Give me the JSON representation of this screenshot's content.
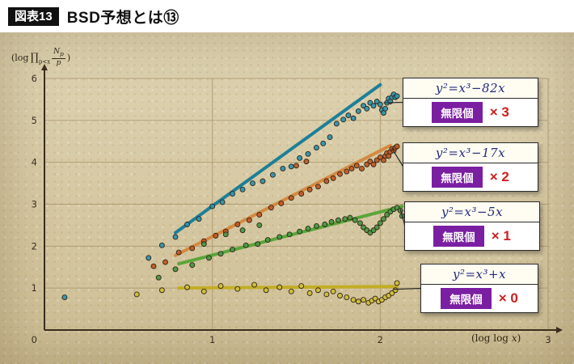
{
  "header": {
    "tag": "図表13",
    "title": "BSD予想とは⑬"
  },
  "axes": {
    "y_open": "(log",
    "y_prod": "∏",
    "y_prod_sub": "p<x",
    "y_num": "N",
    "y_num_sub": "p",
    "y_den": "p",
    "y_close": ")",
    "x_open": "(log log ",
    "x_var": "x",
    "x_close": ")"
  },
  "colors": {
    "background_parchment": "#d8cba3",
    "axis": "#3b2d1c",
    "grid": "#a89468",
    "equation_text": "#232a7c",
    "infinite_badge": "#7b1fa2",
    "multiplier_red": "#cf1e1e"
  },
  "chart_data": {
    "type": "scatter",
    "title": "",
    "xlabel": "(log log x)",
    "ylabel": "(log ∏ p<x Np/p)",
    "xlim": [
      0,
      3
    ],
    "ylim": [
      0,
      6
    ],
    "x_ticks": [
      "0",
      "1",
      "2",
      "3"
    ],
    "y_ticks": [
      "0",
      "1",
      "2",
      "3",
      "4",
      "5",
      "6"
    ],
    "grid": true,
    "legend_position": "right-callouts",
    "series": [
      {
        "equation": "y²=x³−82x",
        "count_label": "無限個",
        "multiplier": "× 3",
        "rank": 3,
        "line_color": "#1d7f97",
        "point_color": "#2e93ab",
        "trend": {
          "x1": 0.78,
          "y1": 2.32,
          "x2": 2.0,
          "y2": 5.85
        },
        "callout_target": [
          2.02,
          5.42
        ],
        "points": [
          [
            0.12,
            0.78
          ],
          [
            0.62,
            1.72
          ],
          [
            0.7,
            2.02
          ],
          [
            0.78,
            2.22
          ],
          [
            0.85,
            2.52
          ],
          [
            0.92,
            2.65
          ],
          [
            1.0,
            2.95
          ],
          [
            1.06,
            3.05
          ],
          [
            1.12,
            3.25
          ],
          [
            1.18,
            3.35
          ],
          [
            1.24,
            3.5
          ],
          [
            1.3,
            3.55
          ],
          [
            1.36,
            3.7
          ],
          [
            1.42,
            3.85
          ],
          [
            1.47,
            3.9
          ],
          [
            1.52,
            4.1
          ],
          [
            1.57,
            4.2
          ],
          [
            1.62,
            4.35
          ],
          [
            1.66,
            4.45
          ],
          [
            1.7,
            4.6
          ],
          [
            1.74,
            4.92
          ],
          [
            1.78,
            5.02
          ],
          [
            1.81,
            5.12
          ],
          [
            1.84,
            5.05
          ],
          [
            1.87,
            5.22
          ],
          [
            1.9,
            5.35
          ],
          [
            1.92,
            5.28
          ],
          [
            1.94,
            5.42
          ],
          [
            1.96,
            5.35
          ],
          [
            1.98,
            5.45
          ],
          [
            2.0,
            5.38
          ],
          [
            2.01,
            5.25
          ],
          [
            2.02,
            5.18
          ],
          [
            2.03,
            5.28
          ],
          [
            2.04,
            5.42
          ],
          [
            2.05,
            5.52
          ],
          [
            2.06,
            5.45
          ],
          [
            2.07,
            5.55
          ],
          [
            2.08,
            5.62
          ],
          [
            2.09,
            5.55
          ],
          [
            2.1,
            5.58
          ]
        ]
      },
      {
        "equation": "y²=x³−17x",
        "count_label": "無限個",
        "multiplier": "× 2",
        "rank": 2,
        "line_color": "#d48a41",
        "point_color": "#bf5a26",
        "trend": {
          "x1": 0.78,
          "y1": 1.78,
          "x2": 2.06,
          "y2": 4.4
        },
        "callout_target": [
          2.07,
          4.33
        ],
        "points": [
          [
            0.65,
            1.52
          ],
          [
            0.72,
            1.62
          ],
          [
            0.8,
            1.85
          ],
          [
            0.88,
            1.95
          ],
          [
            0.95,
            2.12
          ],
          [
            1.02,
            2.25
          ],
          [
            1.08,
            2.35
          ],
          [
            1.15,
            2.52
          ],
          [
            1.22,
            2.62
          ],
          [
            1.28,
            2.75
          ],
          [
            1.35,
            2.92
          ],
          [
            1.41,
            3.02
          ],
          [
            1.47,
            3.15
          ],
          [
            1.5,
            3.92
          ],
          [
            1.53,
            3.25
          ],
          [
            1.56,
            4.02
          ],
          [
            1.58,
            3.35
          ],
          [
            1.63,
            3.42
          ],
          [
            1.68,
            3.55
          ],
          [
            1.72,
            3.62
          ],
          [
            1.76,
            3.72
          ],
          [
            1.8,
            3.78
          ],
          [
            1.83,
            3.85
          ],
          [
            1.86,
            3.92
          ],
          [
            1.89,
            3.85
          ],
          [
            1.92,
            3.95
          ],
          [
            1.94,
            4.02
          ],
          [
            1.96,
            3.95
          ],
          [
            1.98,
            4.05
          ],
          [
            2.0,
            4.12
          ],
          [
            2.02,
            4.05
          ],
          [
            2.03,
            4.15
          ],
          [
            2.04,
            4.22
          ],
          [
            2.05,
            4.15
          ],
          [
            2.06,
            4.25
          ],
          [
            2.07,
            4.32
          ],
          [
            2.08,
            4.28
          ],
          [
            2.09,
            4.35
          ],
          [
            2.1,
            4.38
          ]
        ]
      },
      {
        "equation": "y²=x³−5x",
        "count_label": "無限個",
        "multiplier": "× 1",
        "rank": 1,
        "line_color": "#5ba53a",
        "point_color": "#4b9740",
        "trend": {
          "x1": 0.8,
          "y1": 1.58,
          "x2": 2.13,
          "y2": 2.95
        },
        "callout_target": [
          2.12,
          2.88
        ],
        "points": [
          [
            0.68,
            1.25
          ],
          [
            0.78,
            1.45
          ],
          [
            0.88,
            1.55
          ],
          [
            0.95,
            2.05
          ],
          [
            0.98,
            1.72
          ],
          [
            1.05,
            1.82
          ],
          [
            1.08,
            2.28
          ],
          [
            1.12,
            1.92
          ],
          [
            1.18,
            2.38
          ],
          [
            1.2,
            2.02
          ],
          [
            1.27,
            2.05
          ],
          [
            1.28,
            2.5
          ],
          [
            1.33,
            2.15
          ],
          [
            1.4,
            2.22
          ],
          [
            1.46,
            2.28
          ],
          [
            1.52,
            2.35
          ],
          [
            1.57,
            2.42
          ],
          [
            1.62,
            2.48
          ],
          [
            1.67,
            2.52
          ],
          [
            1.71,
            2.58
          ],
          [
            1.75,
            2.62
          ],
          [
            1.79,
            2.65
          ],
          [
            1.82,
            2.68
          ],
          [
            1.85,
            2.62
          ],
          [
            1.88,
            2.55
          ],
          [
            1.9,
            2.45
          ],
          [
            1.92,
            2.38
          ],
          [
            1.94,
            2.32
          ],
          [
            1.96,
            2.38
          ],
          [
            1.98,
            2.45
          ],
          [
            2.0,
            2.55
          ],
          [
            2.02,
            2.65
          ],
          [
            2.04,
            2.75
          ],
          [
            2.06,
            2.82
          ],
          [
            2.08,
            2.88
          ],
          [
            2.1,
            2.92
          ],
          [
            2.12,
            2.85
          ],
          [
            2.13,
            2.72
          ]
        ]
      },
      {
        "equation": "y²=x³+x",
        "count_label": "無限個",
        "multiplier": "× 0",
        "rank": 0,
        "line_color": "#c3ad25",
        "point_color": "#cfbe3a",
        "trend": {
          "x1": 0.8,
          "y1": 1.0,
          "x2": 2.1,
          "y2": 1.04
        },
        "callout_target": [
          2.08,
          0.97
        ],
        "points": [
          [
            0.55,
            0.85
          ],
          [
            0.7,
            0.95
          ],
          [
            0.85,
            1.02
          ],
          [
            0.95,
            0.92
          ],
          [
            1.05,
            1.05
          ],
          [
            1.15,
            0.98
          ],
          [
            1.25,
            1.08
          ],
          [
            1.32,
            0.95
          ],
          [
            1.4,
            1.02
          ],
          [
            1.47,
            0.92
          ],
          [
            1.53,
            1.05
          ],
          [
            1.58,
            0.88
          ],
          [
            1.63,
            0.95
          ],
          [
            1.68,
            0.85
          ],
          [
            1.72,
            0.92
          ],
          [
            1.76,
            0.82
          ],
          [
            1.8,
            0.78
          ],
          [
            1.84,
            0.72
          ],
          [
            1.87,
            0.68
          ],
          [
            1.9,
            0.72
          ],
          [
            1.93,
            0.65
          ],
          [
            1.95,
            0.7
          ],
          [
            1.97,
            0.75
          ],
          [
            1.99,
            0.68
          ],
          [
            2.01,
            0.72
          ],
          [
            2.03,
            0.78
          ],
          [
            2.05,
            0.82
          ],
          [
            2.07,
            0.88
          ],
          [
            2.09,
            0.95
          ],
          [
            2.1,
            1.12
          ]
        ]
      }
    ]
  }
}
